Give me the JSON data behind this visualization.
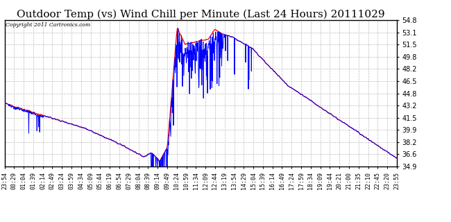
{
  "title": "Outdoor Temp (vs) Wind Chill per Minute (Last 24 Hours) 20111029",
  "copyright": "Copyright 2011 Cartronics.com",
  "yticks": [
    34.9,
    36.6,
    38.2,
    39.9,
    41.5,
    43.2,
    44.8,
    46.5,
    48.2,
    49.8,
    51.5,
    53.1,
    54.8
  ],
  "ymin": 34.9,
  "ymax": 54.8,
  "red_color": "#ff0000",
  "blue_color": "#0000ff",
  "background_color": "#ffffff",
  "grid_color": "#bbbbbb",
  "title_fontsize": 11,
  "xtick_labels": [
    "23:54",
    "00:29",
    "01:04",
    "01:39",
    "02:14",
    "02:49",
    "03:24",
    "03:59",
    "04:34",
    "05:09",
    "05:44",
    "06:19",
    "06:54",
    "07:29",
    "08:04",
    "08:39",
    "09:14",
    "09:49",
    "10:24",
    "10:59",
    "11:34",
    "12:09",
    "12:44",
    "13:19",
    "13:54",
    "14:29",
    "15:04",
    "15:39",
    "16:14",
    "16:49",
    "17:24",
    "17:59",
    "18:34",
    "19:09",
    "19:44",
    "20:21",
    "21:00",
    "21:35",
    "22:10",
    "22:45",
    "23:20",
    "23:55"
  ],
  "num_points": 1441,
  "red_knots_t": [
    0.0,
    0.017,
    0.1,
    0.2,
    0.3,
    0.355,
    0.375,
    0.395,
    0.415,
    0.44,
    0.46,
    0.52,
    0.535,
    0.56,
    0.58,
    0.63,
    0.72,
    1.0
  ],
  "red_knots_v": [
    43.5,
    43.2,
    41.8,
    40.2,
    37.8,
    36.2,
    36.8,
    35.6,
    37.5,
    53.8,
    51.5,
    52.2,
    53.5,
    52.8,
    52.5,
    51.0,
    46.0,
    36.0
  ]
}
